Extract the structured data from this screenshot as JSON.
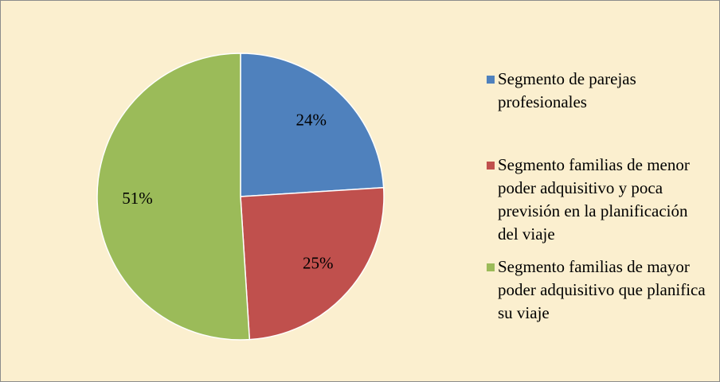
{
  "chart_data": {
    "type": "pie",
    "categories": [
      "Segmento de parejas profesionales",
      "Segmento familias de menor poder adquisitivo y poca previsión en la planificación del viaje",
      "Segmento familias de mayor poder adquisitivo que planifica su viaje"
    ],
    "values": [
      24,
      25,
      51
    ],
    "value_labels": [
      "24%",
      "25%",
      "51%"
    ],
    "colors": [
      "#4f81bd",
      "#c0504d",
      "#9bbb59"
    ],
    "legend": "right"
  }
}
